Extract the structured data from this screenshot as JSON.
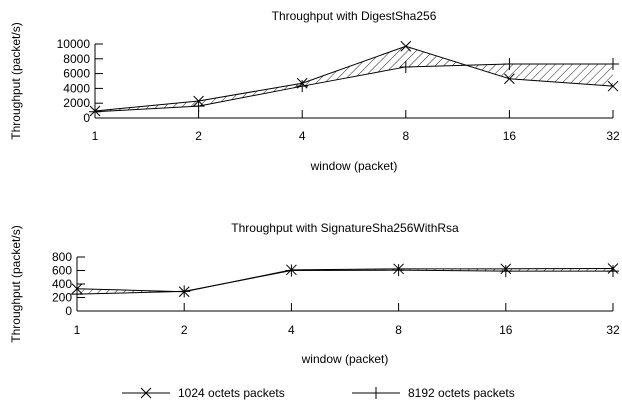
{
  "legend": {
    "placement": "bottom",
    "entries": [
      {
        "label": "1024 octets packets",
        "marker": "x"
      },
      {
        "label": "8192 octets packets",
        "marker": "+"
      }
    ]
  },
  "chart_data": [
    {
      "type": "line",
      "title": "Throughput with DigestSha256",
      "xlabel": "window (packet)",
      "ylabel": "Throughput (packet/s)",
      "x_scale": "log2",
      "categories": [
        "1",
        "2",
        "4",
        "8",
        "16",
        "32"
      ],
      "x": [
        1,
        2,
        4,
        8,
        16,
        32
      ],
      "ylim": [
        0,
        10000
      ],
      "yticks": [
        "0",
        "2000",
        "4000",
        "6000",
        "8000",
        "10000"
      ],
      "fill_between_series": true,
      "grid": false,
      "series": [
        {
          "name": "1024 octets packets",
          "marker": "x",
          "values": [
            950,
            2300,
            4700,
            9700,
            5300,
            4300
          ]
        },
        {
          "name": "8192 octets packets",
          "marker": "+",
          "values": [
            850,
            1600,
            4300,
            6900,
            7300,
            7300
          ]
        }
      ]
    },
    {
      "type": "line",
      "title": "Throughput with SignatureSha256WithRsa",
      "xlabel": "window (packet)",
      "ylabel": "Throughput (packet/s)",
      "x_scale": "log2",
      "categories": [
        "1",
        "2",
        "4",
        "8",
        "16",
        "32"
      ],
      "x": [
        1,
        2,
        4,
        8,
        16,
        32
      ],
      "ylim": [
        0,
        800
      ],
      "yticks": [
        "0",
        "200",
        "400",
        "600",
        "800"
      ],
      "fill_between_series": true,
      "grid": false,
      "series": [
        {
          "name": "1024 octets packets",
          "marker": "x",
          "values": [
            330,
            285,
            610,
            625,
            625,
            630
          ]
        },
        {
          "name": "8192 octets packets",
          "marker": "+",
          "values": [
            250,
            290,
            600,
            605,
            590,
            590
          ]
        }
      ]
    }
  ]
}
